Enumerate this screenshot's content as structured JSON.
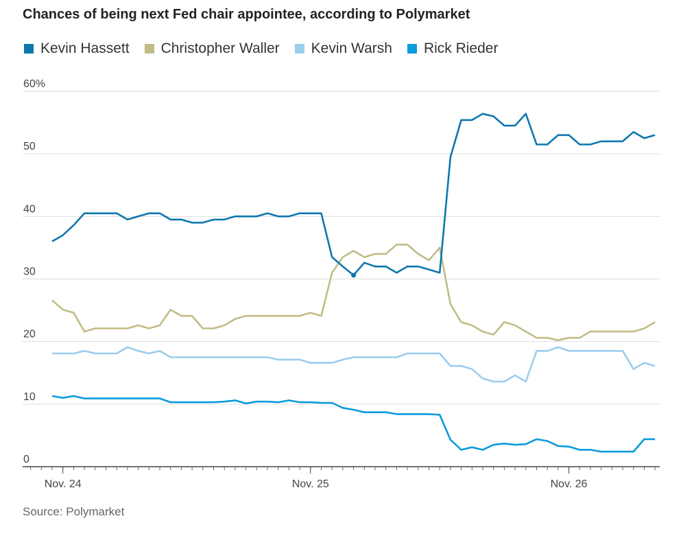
{
  "chart_data": {
    "type": "line",
    "title": "Chances of being next Fed chair appointee, according to Polymarket",
    "source": "Source: Polymarket",
    "ylim": [
      0,
      60
    ],
    "yticks": [
      0,
      10,
      20,
      30,
      40,
      50,
      60
    ],
    "ytick_labels": [
      "0",
      "10",
      "20",
      "30",
      "40",
      "50",
      "60%"
    ],
    "xticks": [
      {
        "index": 1,
        "label": "Nov. 24"
      },
      {
        "index": 24,
        "label": "Nov. 25"
      },
      {
        "index": 48,
        "label": "Nov. 26"
      }
    ],
    "grid": true,
    "legend_position": "top",
    "highlight": {
      "series": "Kevin Hassett",
      "index": 29
    },
    "series": [
      {
        "name": "Kevin Hassett",
        "color": "#0d77ad",
        "values": [
          36,
          37,
          38.6,
          40.5,
          40.5,
          40.5,
          40.5,
          39.5,
          40,
          40.5,
          40.5,
          39.5,
          39.5,
          39,
          39,
          39.5,
          39.5,
          40,
          40,
          40,
          40.5,
          40,
          40,
          40.5,
          40.5,
          40.5,
          33.5,
          32,
          30.6,
          32.6,
          32,
          32,
          31,
          32,
          32,
          31.5,
          31,
          49.5,
          55.4,
          55.4,
          56.4,
          56,
          54.5,
          54.5,
          56.4,
          51.5,
          51.5,
          53,
          53,
          51.5,
          51.5,
          52,
          52,
          52,
          53.5,
          52.5,
          53
        ]
      },
      {
        "name": "Christopher Waller",
        "color": "#c2bc85",
        "values": [
          26.6,
          25.1,
          24.6,
          21.6,
          22.1,
          22.1,
          22.1,
          22.1,
          22.6,
          22.1,
          22.6,
          25.1,
          24.1,
          24.1,
          22.1,
          22.1,
          22.6,
          23.6,
          24.1,
          24.1,
          24.1,
          24.1,
          24.1,
          24.1,
          24.6,
          24.1,
          31,
          33.5,
          34.5,
          33.5,
          34,
          34,
          35.5,
          35.5,
          34,
          33,
          35,
          26,
          23.1,
          22.6,
          21.6,
          21.1,
          23.1,
          22.6,
          21.6,
          20.6,
          20.6,
          20.2,
          20.6,
          20.6,
          21.6,
          21.6,
          21.6,
          21.6,
          21.6,
          22.1,
          23.1
        ]
      },
      {
        "name": "Kevin Warsh",
        "color": "#9bcdee",
        "values": [
          18.1,
          18.1,
          18.1,
          18.5,
          18.1,
          18.1,
          18.1,
          19.1,
          18.5,
          18.1,
          18.5,
          17.5,
          17.5,
          17.5,
          17.5,
          17.5,
          17.5,
          17.5,
          17.5,
          17.5,
          17.5,
          17.1,
          17.1,
          17.1,
          16.6,
          16.6,
          16.6,
          17.1,
          17.5,
          17.5,
          17.5,
          17.5,
          17.5,
          18.1,
          18.1,
          18.1,
          18.1,
          16.1,
          16.1,
          15.6,
          14.1,
          13.6,
          13.6,
          14.6,
          13.6,
          18.5,
          18.5,
          19.1,
          18.5,
          18.5,
          18.5,
          18.5,
          18.5,
          18.5,
          15.6,
          16.6,
          16.1
        ]
      },
      {
        "name": "Rick Rieder",
        "color": "#0a9bdc",
        "values": [
          11.3,
          11,
          11.3,
          10.9,
          10.9,
          10.9,
          10.9,
          10.9,
          10.9,
          10.9,
          10.9,
          10.3,
          10.3,
          10.3,
          10.3,
          10.3,
          10.4,
          10.6,
          10.1,
          10.4,
          10.4,
          10.3,
          10.6,
          10.3,
          10.3,
          10.2,
          10.2,
          9.4,
          9.1,
          8.7,
          8.7,
          8.7,
          8.4,
          8.4,
          8.4,
          8.4,
          8.3,
          4.3,
          2.7,
          3.1,
          2.7,
          3.5,
          3.7,
          3.5,
          3.6,
          4.4,
          4.1,
          3.3,
          3.2,
          2.7,
          2.7,
          2.4,
          2.4,
          2.4,
          2.4,
          4.4,
          4.4
        ]
      }
    ]
  }
}
